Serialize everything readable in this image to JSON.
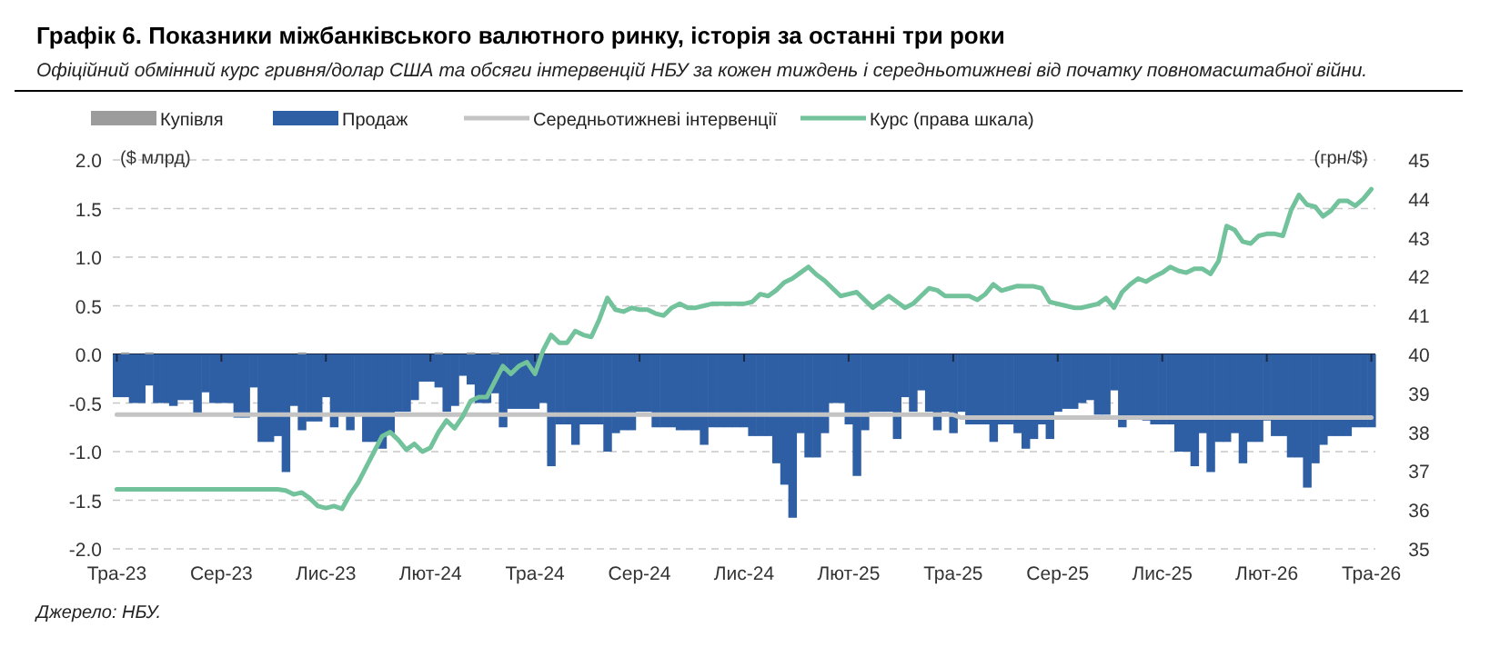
{
  "chart_data": {
    "type": "bar",
    "title": "Графік 6. Показники міжбанківського валютного ринку, історія за останні три роки",
    "subtitle": "Офіційний обмінний курс гривня/долар США та обсяги інтервенцій НБУ за кожен тиждень і середньотижневі від початку повномасштабної війни.",
    "ylabel": "($ млрд)",
    "y2label": "(грн/$)",
    "annotations": [
      "Джерело: НБУ."
    ],
    "categories": [
      "Тра-23",
      null,
      null,
      null,
      null,
      null,
      null,
      null,
      null,
      null,
      null,
      null,
      null,
      "Сер-23",
      null,
      null,
      null,
      null,
      null,
      null,
      null,
      null,
      null,
      null,
      null,
      null,
      "Лис-23",
      null,
      null,
      null,
      null,
      null,
      null,
      null,
      null,
      null,
      null,
      null,
      null,
      "Лют-24",
      null,
      null,
      null,
      null,
      null,
      null,
      null,
      null,
      null,
      null,
      null,
      null,
      "Тра-24",
      null,
      null,
      null,
      null,
      null,
      null,
      null,
      null,
      null,
      null,
      null,
      null,
      "Сер-24",
      null,
      null,
      null,
      null,
      null,
      null,
      null,
      null,
      null,
      null,
      null,
      null,
      "Лис-24",
      null,
      null,
      null,
      null,
      null,
      null,
      null,
      null,
      null,
      null,
      null,
      null,
      "Лют-25",
      null,
      null,
      null,
      null,
      null,
      null,
      null,
      null,
      null,
      null,
      null,
      null,
      "Тра-25",
      null,
      null,
      null,
      null,
      null,
      null,
      null,
      null,
      null,
      null,
      null,
      null,
      "Сер-25",
      null,
      null,
      null,
      null,
      null,
      null,
      null,
      null,
      null,
      null,
      null,
      null,
      "Лис-25",
      null,
      null,
      null,
      null,
      null,
      null,
      null,
      null,
      null,
      null,
      null,
      null,
      "Лют-26",
      null,
      null,
      null,
      null,
      null,
      null,
      null,
      null,
      null,
      null,
      null,
      null,
      "Тра-26"
    ],
    "stacked": true,
    "grid": "y",
    "legend": "top",
    "ylim": [
      -2,
      2
    ],
    "yticks": [
      {
        "value": -2,
        "label": "-2.0"
      },
      {
        "value": -1.5,
        "label": "-1.5"
      },
      {
        "value": -1,
        "label": "-1.0"
      },
      {
        "value": -0.5,
        "label": "-0.5"
      },
      {
        "value": 0,
        "label": "0.0"
      },
      {
        "value": 0.5,
        "label": "0.5"
      },
      {
        "value": 1,
        "label": "1.0"
      },
      {
        "value": 1.5,
        "label": "1.5"
      },
      {
        "value": 2,
        "label": "2.0"
      }
    ],
    "y2lim": [
      35,
      45
    ],
    "y2ticks": [
      35,
      36,
      37,
      38,
      39,
      40,
      41,
      42,
      43,
      44,
      45
    ],
    "series": [
      {
        "name": "Купівля",
        "color": "#9c9c9c",
        "values": [
          0,
          0.02,
          0,
          0,
          0.02,
          0,
          0,
          0,
          0,
          0,
          0,
          0,
          0,
          0,
          0,
          0,
          0,
          0,
          0,
          0,
          0,
          0,
          0,
          0.02,
          0,
          0,
          0,
          0,
          0,
          0,
          0,
          0,
          0,
          0,
          0,
          0,
          0,
          0,
          0,
          0,
          0.02,
          0,
          0,
          0,
          0.02,
          0,
          0,
          0.02,
          0,
          0,
          0,
          0,
          0,
          0,
          0,
          0,
          0,
          0,
          0,
          0,
          0,
          0,
          0,
          0,
          0,
          0,
          0,
          0,
          0,
          0,
          0,
          0,
          0,
          0,
          0,
          0,
          0,
          0,
          0,
          0,
          0,
          0,
          0,
          0,
          0,
          0,
          0,
          0,
          0,
          0,
          0,
          0,
          0,
          0,
          0,
          0,
          0,
          0,
          0,
          0,
          0,
          0,
          0,
          0,
          0,
          0,
          0,
          0,
          0,
          0,
          0,
          0,
          0,
          0,
          0,
          0,
          0,
          0,
          0,
          0,
          0,
          0,
          0,
          0,
          0,
          0,
          0,
          0,
          0,
          0,
          0,
          0,
          0,
          0,
          0,
          0,
          0,
          0,
          0,
          0,
          0,
          0,
          0,
          0,
          0,
          0,
          0,
          0,
          0,
          0,
          0,
          0,
          0,
          0,
          0,
          0,
          0
        ]
      },
      {
        "name": "Продаж",
        "color": "#2e5fa4",
        "values": [
          -0.44,
          -0.44,
          -0.5,
          -0.5,
          -0.32,
          -0.5,
          -0.5,
          -0.53,
          -0.47,
          -0.47,
          -0.62,
          -0.39,
          -0.5,
          -0.5,
          -0.5,
          -0.65,
          -0.65,
          -0.34,
          -0.9,
          -0.9,
          -0.84,
          -1.21,
          -0.53,
          -0.78,
          -0.69,
          -0.69,
          -0.44,
          -0.75,
          -0.62,
          -0.78,
          -0.62,
          -0.9,
          -0.9,
          -0.97,
          -0.81,
          -0.59,
          -0.59,
          -0.47,
          -0.28,
          -0.28,
          -0.34,
          -0.59,
          -0.53,
          -0.22,
          -0.31,
          -0.5,
          -0.5,
          -0.4,
          -0.75,
          -0.56,
          -0.56,
          -0.56,
          -0.56,
          -0.5,
          -1.15,
          -0.72,
          -0.72,
          -0.93,
          -0.72,
          -0.72,
          -0.72,
          -1,
          -0.81,
          -0.78,
          -0.78,
          -0.59,
          -0.59,
          -0.75,
          -0.75,
          -0.75,
          -0.78,
          -0.78,
          -0.78,
          -0.93,
          -0.75,
          -0.75,
          -0.75,
          -0.75,
          -0.75,
          -0.84,
          -0.84,
          -0.84,
          -1.12,
          -1.34,
          -1.68,
          -0.81,
          -1.06,
          -1.06,
          -0.81,
          -0.5,
          -0.5,
          -0.72,
          -1.25,
          -0.78,
          -0.59,
          -0.59,
          -0.59,
          -0.87,
          -0.44,
          -0.59,
          -0.37,
          -0.59,
          -0.78,
          -0.59,
          -0.81,
          -0.59,
          -0.72,
          -0.72,
          -0.72,
          -0.9,
          -0.72,
          -0.72,
          -0.81,
          -0.97,
          -0.87,
          -0.72,
          -0.87,
          -0.59,
          -0.56,
          -0.56,
          -0.5,
          -0.47,
          -0.62,
          -0.62,
          -0.37,
          -0.75,
          -0.65,
          -0.65,
          -0.68,
          -0.72,
          -0.72,
          -0.72,
          -1,
          -1,
          -1.15,
          -0.81,
          -1.21,
          -0.9,
          -0.9,
          -0.81,
          -1.12,
          -0.9,
          -0.9,
          -0.68,
          -0.84,
          -0.84,
          -1.06,
          -1.06,
          -1.37,
          -1.12,
          -0.93,
          -0.84,
          -0.84,
          -0.84,
          -0.75,
          -0.75,
          -0.75
        ]
      },
      {
        "name": "Середньотижневі інтервенції",
        "type": "line",
        "color": "#c4c4c4",
        "values": [
          -0.62,
          -0.62,
          -0.62,
          -0.62,
          -0.62,
          -0.62,
          -0.62,
          -0.62,
          -0.62,
          -0.62,
          -0.62,
          -0.62,
          -0.62,
          -0.62,
          -0.62,
          -0.62,
          -0.62,
          -0.62,
          -0.62,
          -0.62,
          -0.62,
          -0.62,
          -0.62,
          -0.62,
          -0.62,
          -0.62,
          -0.62,
          -0.62,
          -0.62,
          -0.62,
          -0.62,
          -0.62,
          -0.62,
          -0.62,
          -0.62,
          -0.62,
          -0.62,
          -0.62,
          -0.62,
          -0.62,
          -0.62,
          -0.62,
          -0.62,
          -0.62,
          -0.62,
          -0.62,
          -0.62,
          -0.62,
          -0.62,
          -0.62,
          -0.62,
          -0.62,
          -0.62,
          -0.62,
          -0.62,
          -0.62,
          -0.62,
          -0.62,
          -0.62,
          -0.62,
          -0.62,
          -0.62,
          -0.62,
          -0.62,
          -0.62,
          -0.62,
          -0.62,
          -0.62,
          -0.62,
          -0.62,
          -0.62,
          -0.62,
          -0.62,
          -0.62,
          -0.62,
          -0.62,
          -0.62,
          -0.62,
          -0.62,
          -0.62,
          -0.62,
          -0.62,
          -0.62,
          -0.62,
          -0.62,
          -0.62,
          -0.62,
          -0.62,
          -0.62,
          -0.62,
          -0.62,
          -0.62,
          -0.62,
          -0.62,
          -0.62,
          -0.62,
          -0.62,
          -0.62,
          -0.62,
          -0.62,
          -0.62,
          -0.62,
          -0.62,
          -0.62,
          -0.62,
          -0.65,
          -0.65,
          -0.65,
          -0.65,
          -0.65,
          -0.65,
          -0.65,
          -0.65,
          -0.65,
          -0.65,
          -0.65,
          -0.65,
          -0.65,
          -0.65,
          -0.65,
          -0.65,
          -0.65,
          -0.65,
          -0.65,
          -0.65,
          -0.65,
          -0.65,
          -0.65,
          -0.65,
          -0.65,
          -0.65,
          -0.65,
          -0.65,
          -0.65,
          -0.65,
          -0.65,
          -0.65,
          -0.65,
          -0.65,
          -0.65,
          -0.65,
          -0.65,
          -0.65,
          -0.65,
          -0.65,
          -0.65,
          -0.65,
          -0.65,
          -0.65,
          -0.65,
          -0.65,
          -0.65,
          -0.65,
          -0.65,
          -0.65,
          -0.65,
          -0.65
        ]
      },
      {
        "name": "Курс (права шкала)",
        "type": "line",
        "axis": "y2",
        "color": "#72c29c",
        "values": [
          36.53,
          36.53,
          36.53,
          36.53,
          36.53,
          36.53,
          36.53,
          36.53,
          36.53,
          36.53,
          36.53,
          36.53,
          36.53,
          36.53,
          36.53,
          36.53,
          36.53,
          36.53,
          36.53,
          36.53,
          36.53,
          36.5,
          36.4,
          36.45,
          36.3,
          36.1,
          36.05,
          36.1,
          36.03,
          36.4,
          36.7,
          37.1,
          37.5,
          37.9,
          38,
          37.8,
          37.55,
          37.7,
          37.5,
          37.6,
          38,
          38.3,
          38.1,
          38.4,
          38.8,
          38.9,
          38.9,
          39.3,
          39.7,
          39.5,
          39.7,
          39.8,
          39.5,
          40.1,
          40.5,
          40.3,
          40.3,
          40.6,
          40.5,
          40.45,
          40.9,
          41.45,
          41.15,
          41.1,
          41.2,
          41.15,
          41.15,
          41.05,
          41,
          41.2,
          41.3,
          41.2,
          41.2,
          41.25,
          41.3,
          41.3,
          41.3,
          41.3,
          41.3,
          41.35,
          41.55,
          41.5,
          41.65,
          41.85,
          41.95,
          42.1,
          42.25,
          42.05,
          41.9,
          41.7,
          41.5,
          41.55,
          41.6,
          41.4,
          41.2,
          41.35,
          41.5,
          41.35,
          41.2,
          41.3,
          41.5,
          41.7,
          41.65,
          41.5,
          41.5,
          41.5,
          41.5,
          41.4,
          41.55,
          41.8,
          41.64,
          41.7,
          41.76,
          41.75,
          41.75,
          41.7,
          41.35,
          41.3,
          41.25,
          41.2,
          41.2,
          41.25,
          41.3,
          41.45,
          41.2,
          41.6,
          41.8,
          41.95,
          41.87,
          42,
          42.1,
          42.25,
          42.15,
          42.1,
          42.2,
          42.2,
          42.07,
          42.4,
          43.3,
          43.2,
          42.9,
          42.85,
          43.05,
          43.1,
          43.1,
          43.05,
          43.7,
          44.1,
          43.85,
          43.8,
          43.55,
          43.7,
          43.95,
          43.95,
          43.82,
          44,
          44.25
        ]
      }
    ]
  }
}
